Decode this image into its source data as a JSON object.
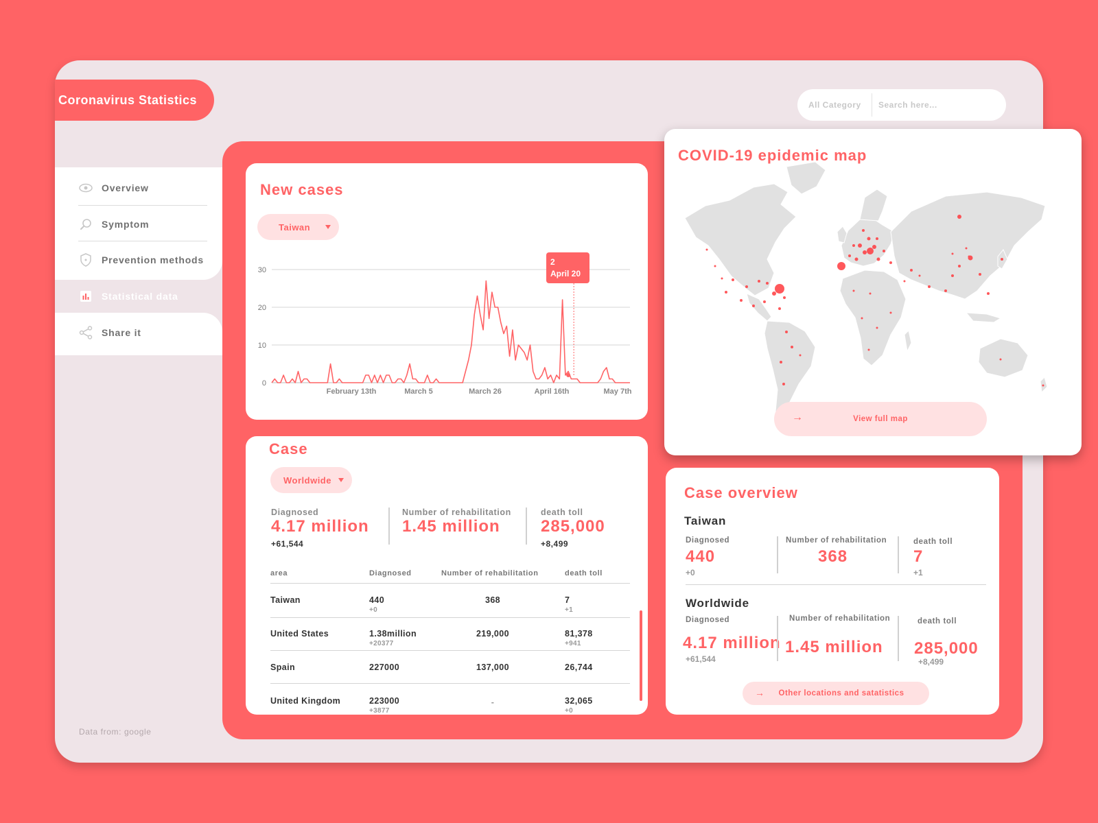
{
  "app": {
    "title": "Coronavirus Statistics"
  },
  "search": {
    "category": "All Category",
    "placeholder": "Search here..."
  },
  "sidebar": {
    "items": [
      {
        "label": "Overview"
      },
      {
        "label": "Symptom"
      },
      {
        "label": "Prevention methods"
      },
      {
        "label": "Statistical data"
      },
      {
        "label": "Share it"
      }
    ],
    "active_index": 3,
    "footer": "Data from: google"
  },
  "new_cases": {
    "title": "New cases",
    "region": "Taiwan",
    "tooltip": {
      "value": "2",
      "date": "April 20"
    }
  },
  "chart_data": {
    "type": "line",
    "title": "New cases",
    "x_tick_labels": [
      "February 13th",
      "March 5",
      "March 26",
      "April 16th",
      "May 7th"
    ],
    "y_ticks": [
      0,
      10,
      20,
      30
    ],
    "ylim": [
      0,
      30
    ],
    "grid": true,
    "highlight": {
      "x_label": "April 20",
      "value": 2
    },
    "series": [
      {
        "color": "#ff6365",
        "values": [
          0,
          1,
          0,
          0,
          2,
          0,
          0,
          1,
          0,
          3,
          0,
          1,
          1,
          0,
          0,
          0,
          0,
          0,
          0,
          0,
          5,
          0,
          0,
          1,
          0,
          0,
          0,
          0,
          0,
          0,
          0,
          0,
          2,
          2,
          0,
          2,
          0,
          2,
          0,
          2,
          2,
          0,
          0,
          1,
          1,
          0,
          2,
          5,
          1,
          1,
          0,
          0,
          0,
          2,
          0,
          0,
          1,
          0,
          0,
          0,
          0,
          0,
          0,
          0,
          0,
          0,
          3,
          6,
          10,
          18,
          23,
          18,
          14,
          27,
          17,
          24,
          20,
          20,
          16,
          13,
          15,
          7,
          14,
          6,
          10,
          9,
          8,
          6,
          10,
          3,
          1,
          1,
          2,
          4,
          1,
          2,
          0,
          2,
          1,
          22,
          2,
          3,
          1,
          1,
          1,
          0,
          0,
          0,
          0,
          0,
          0,
          0,
          1,
          3,
          4,
          1,
          1,
          0,
          0,
          0,
          0,
          0,
          0
        ]
      }
    ]
  },
  "case": {
    "title": "Case",
    "region": "Worldwide",
    "stats": [
      {
        "label": "Diagnosed",
        "value": "4.17 million",
        "delta": "+61,544"
      },
      {
        "label": "Number of rehabilitation",
        "value": "1.45 million",
        "delta": ""
      },
      {
        "label": "death toll",
        "value": "285,000",
        "delta": "+8,499"
      }
    ],
    "table": {
      "headers": [
        "area",
        "Diagnosed",
        "Number of rehabilitation",
        "death toll"
      ],
      "rows": [
        {
          "area": "Taiwan",
          "diagnosed": "440",
          "diagnosed_delta": "+0",
          "rehab": "368",
          "death": "7",
          "death_delta": "+1"
        },
        {
          "area": "United States",
          "diagnosed": "1.38million",
          "diagnosed_delta": "+20377",
          "rehab": "219,000",
          "death": "81,378",
          "death_delta": "+941"
        },
        {
          "area": "Spain",
          "diagnosed": "227000",
          "diagnosed_delta": "",
          "rehab": "137,000",
          "death": "26,744",
          "death_delta": ""
        },
        {
          "area": "United Kingdom",
          "diagnosed": "223000",
          "diagnosed_delta": "+3877",
          "rehab": "-",
          "death": "32,065",
          "death_delta": "+0"
        }
      ]
    }
  },
  "map": {
    "title": "COVID-19 epidemic map",
    "button": "View full map"
  },
  "overview": {
    "title": "Case overview",
    "sections": [
      {
        "name": "Taiwan",
        "stats": [
          {
            "label": "Diagnosed",
            "value": "440",
            "delta": "+0"
          },
          {
            "label": "Number of rehabilitation",
            "value": "368",
            "delta": ""
          },
          {
            "label": "death toll",
            "value": "7",
            "delta": "+1"
          }
        ]
      },
      {
        "name": "Worldwide",
        "stats": [
          {
            "label": "Diagnosed",
            "value": "4.17 million",
            "delta": "+61,544"
          },
          {
            "label": "Number of rehabilitation",
            "value": "1.45 million",
            "delta": ""
          },
          {
            "label": "death toll",
            "value": "285,000",
            "delta": "+8,499"
          }
        ]
      }
    ],
    "button": "Other locations and satatistics"
  },
  "colors": {
    "accent": "#ff6365",
    "frame": "#efe4e8",
    "pill": "#ffe1e2"
  }
}
